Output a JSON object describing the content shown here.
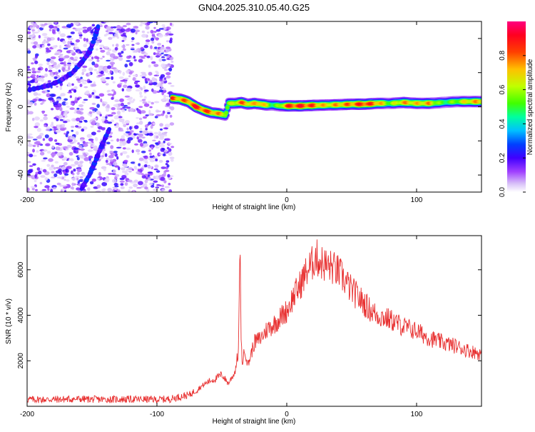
{
  "figure": {
    "title": "GN04.2025.310.05.40.G25"
  },
  "chart_data": [
    {
      "type": "heatmap",
      "name": "spectrogram",
      "xlabel": "Height of straight line (km)",
      "ylabel": "Frequency (Hz)",
      "xlim": [
        -200,
        150
      ],
      "ylim": [
        -50,
        50
      ],
      "x_ticks": [
        -200,
        -100,
        0,
        100
      ],
      "y_ticks": [
        -40,
        -20,
        0,
        20,
        40
      ],
      "colorbar": {
        "label": "Normalized spectral amplitude",
        "range": [
          0,
          1
        ],
        "ticks": [
          "0.0",
          "0.2",
          "0.4",
          "0.6",
          "0.8"
        ],
        "colormap": [
          "#ffffff",
          "#e8d8f8",
          "#9040e0",
          "#6000ff",
          "#0000ff",
          "#00c0ff",
          "#00ff80",
          "#80ff00",
          "#ffff00",
          "#ff8000",
          "#ff0000",
          "#ff0080"
        ]
      },
      "noise_region": {
        "x_range": [
          -200,
          -88
        ],
        "description_level": 0.15
      },
      "trace": {
        "x": [
          -88,
          -82,
          -76,
          -70,
          -64,
          -58,
          -52,
          -47,
          -45,
          -40,
          -35,
          -30,
          -25,
          -20,
          -15,
          -10,
          -5,
          0,
          10,
          20,
          30,
          40,
          50,
          60,
          70,
          80,
          90,
          100,
          110,
          120,
          130,
          140,
          150
        ],
        "y": [
          5,
          4.5,
          3,
          0,
          -2,
          -3.5,
          -4,
          -5,
          2,
          2,
          2.5,
          1.5,
          2,
          1.5,
          1,
          1,
          0.5,
          0.5,
          0.5,
          0.8,
          1,
          1.2,
          1.5,
          1.5,
          2,
          2,
          2.5,
          2,
          2,
          2.5,
          3,
          3,
          3
        ],
        "amplitude": [
          0.9,
          0.8,
          0.85,
          0.95,
          0.9,
          0.85,
          0.8,
          0.7,
          0.6,
          0.7,
          0.85,
          0.8,
          0.75,
          0.85,
          0.7,
          0.55,
          0.6,
          0.9,
          0.95,
          0.9,
          0.75,
          0.8,
          0.85,
          0.95,
          0.85,
          0.6,
          0.8,
          0.75,
          0.8,
          0.55,
          0.6,
          0.75,
          0.8
        ]
      },
      "noise_arcs": [
        {
          "x": [
            -198,
            -185,
            -175,
            -165,
            -158,
            -152,
            -148,
            -145
          ],
          "y": [
            10,
            12,
            15,
            20,
            26,
            32,
            40,
            48
          ]
        },
        {
          "x": [
            -158,
            -152,
            -148,
            -142,
            -136
          ],
          "y": [
            -48,
            -40,
            -33,
            -22,
            -12
          ]
        }
      ]
    },
    {
      "type": "line",
      "name": "snr",
      "xlabel": "Height of straight line (km)",
      "ylabel": "SNR (10 * v/v)",
      "xlim": [
        -200,
        150
      ],
      "ylim": [
        0,
        7500
      ],
      "x_ticks": [
        -200,
        -100,
        0,
        100
      ],
      "y_ticks": [
        2000,
        4000,
        6000
      ],
      "color": "#e83030",
      "series": [
        {
          "x": [
            -200,
            -180,
            -160,
            -140,
            -120,
            -100,
            -90,
            -80,
            -75,
            -70,
            -65,
            -60,
            -55,
            -50,
            -45,
            -40,
            -37,
            -36,
            -35,
            -34,
            -32,
            -30,
            -25,
            -20,
            -15,
            -10,
            -5,
            0,
            5,
            10,
            15,
            20,
            22,
            25,
            30,
            35,
            40,
            45,
            50,
            55,
            60,
            65,
            70,
            75,
            80,
            90,
            100,
            110,
            120,
            130,
            140,
            150
          ],
          "y": [
            300,
            300,
            320,
            300,
            310,
            300,
            320,
            450,
            500,
            700,
            900,
            1100,
            1200,
            1400,
            1000,
            1500,
            2500,
            6500,
            2000,
            2000,
            2500,
            1800,
            2800,
            3000,
            3400,
            3600,
            3900,
            4200,
            4800,
            5300,
            5900,
            6300,
            6600,
            6400,
            6200,
            6100,
            5900,
            5500,
            5100,
            4800,
            4500,
            4200,
            4000,
            3900,
            3800,
            3500,
            3300,
            3000,
            2800,
            2650,
            2450,
            2300
          ]
        }
      ]
    }
  ]
}
